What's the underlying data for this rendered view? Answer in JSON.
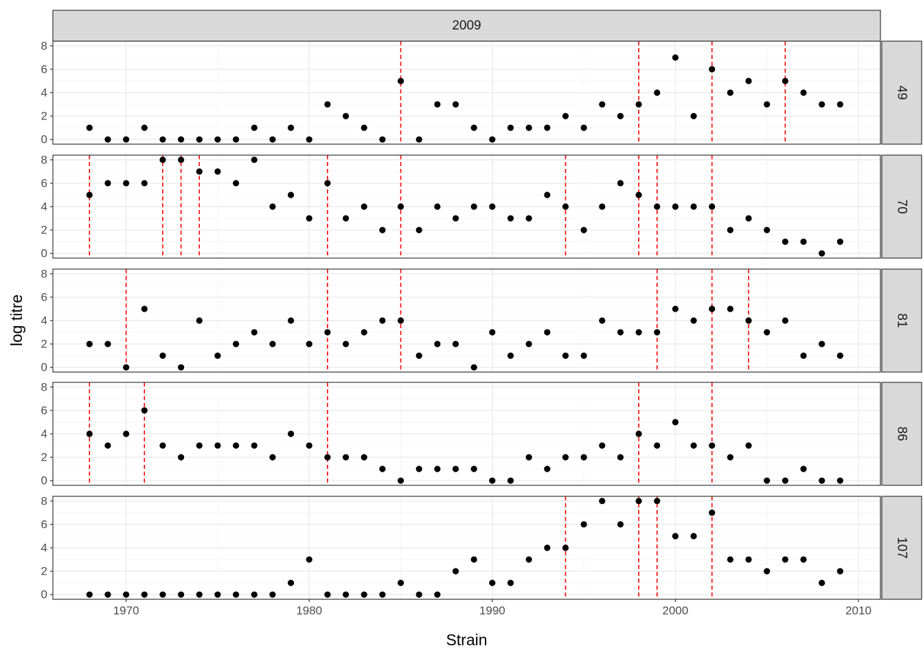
{
  "chart_data": {
    "type": "scatter",
    "facet_top_label": "2009",
    "xlabel": "Strain",
    "ylabel": "log titre",
    "xlim": [
      1966,
      2011.2
    ],
    "ylim": [
      -0.4,
      8.4
    ],
    "xticks": [
      1970,
      1980,
      1990,
      2000,
      2010
    ],
    "yticks": [
      0,
      2,
      4,
      6,
      8
    ],
    "grid": true,
    "x": [
      1968,
      1969,
      1970,
      1971,
      1972,
      1973,
      1974,
      1975,
      1976,
      1977,
      1978,
      1979,
      1980,
      1981,
      1982,
      1983,
      1984,
      1985,
      1986,
      1987,
      1988,
      1989,
      1990,
      1991,
      1992,
      1993,
      1994,
      1995,
      1996,
      1997,
      1998,
      1999,
      2000,
      2001,
      2002,
      2003,
      2004,
      2005,
      2006,
      2007,
      2008,
      2009
    ],
    "panels": [
      {
        "label": "49",
        "values": [
          1,
          0,
          0,
          1,
          0,
          0,
          0,
          0,
          0,
          1,
          0,
          1,
          0,
          3,
          2,
          1,
          0,
          5,
          0,
          3,
          3,
          1,
          0,
          1,
          1,
          1,
          2,
          1,
          3,
          2,
          3,
          4,
          7,
          2,
          6,
          4,
          5,
          3,
          5,
          4,
          3,
          3
        ],
        "vlines": [
          1985,
          1998,
          2002,
          2006
        ]
      },
      {
        "label": "70",
        "values": [
          5,
          6,
          6,
          6,
          8,
          8,
          7,
          7,
          6,
          8,
          4,
          5,
          3,
          6,
          3,
          4,
          2,
          4,
          2,
          4,
          3,
          4,
          4,
          3,
          3,
          5,
          4,
          2,
          4,
          6,
          5,
          4,
          4,
          4,
          4,
          2,
          3,
          2,
          1,
          1,
          0,
          1
        ],
        "vlines": [
          1968,
          1972,
          1973,
          1974,
          1981,
          1985,
          1994,
          1998,
          1999,
          2002
        ]
      },
      {
        "label": "81",
        "values": [
          2,
          2,
          0,
          5,
          1,
          0,
          4,
          1,
          2,
          3,
          2,
          4,
          2,
          3,
          2,
          3,
          4,
          4,
          1,
          2,
          2,
          0,
          3,
          1,
          2,
          3,
          1,
          1,
          4,
          3,
          3,
          3,
          5,
          4,
          5,
          5,
          4,
          3,
          4,
          1,
          2,
          1
        ],
        "vlines": [
          1970,
          1981,
          1985,
          1999,
          2002,
          2004
        ]
      },
      {
        "label": "86",
        "values": [
          4,
          3,
          4,
          6,
          3,
          2,
          3,
          3,
          3,
          3,
          2,
          4,
          3,
          2,
          2,
          2,
          1,
          0,
          1,
          1,
          1,
          1,
          0,
          0,
          2,
          1,
          2,
          2,
          3,
          2,
          4,
          3,
          5,
          3,
          3,
          2,
          3,
          0,
          0,
          1,
          0,
          0
        ],
        "vlines": [
          1968,
          1971,
          1981,
          1998,
          2002
        ]
      },
      {
        "label": "107",
        "values": [
          0,
          0,
          0,
          0,
          0,
          0,
          0,
          0,
          0,
          0,
          0,
          1,
          3,
          0,
          0,
          0,
          0,
          1,
          0,
          0,
          2,
          3,
          1,
          1,
          3,
          4,
          4,
          6,
          8,
          6,
          8,
          8,
          5,
          5,
          7,
          3,
          3,
          2,
          3,
          3,
          1,
          2
        ],
        "vlines": [
          1994,
          1998,
          1999,
          2002
        ]
      }
    ],
    "colors": {
      "points": "#000000",
      "vline": "#ff0000",
      "strip_fill": "#d9d9d9",
      "strip_border": "#333333",
      "panel_border": "#333333",
      "grid_major": "#ebebeb",
      "grid_minor": "#f5f5f5",
      "tick_text": "#4d4d4d"
    }
  }
}
